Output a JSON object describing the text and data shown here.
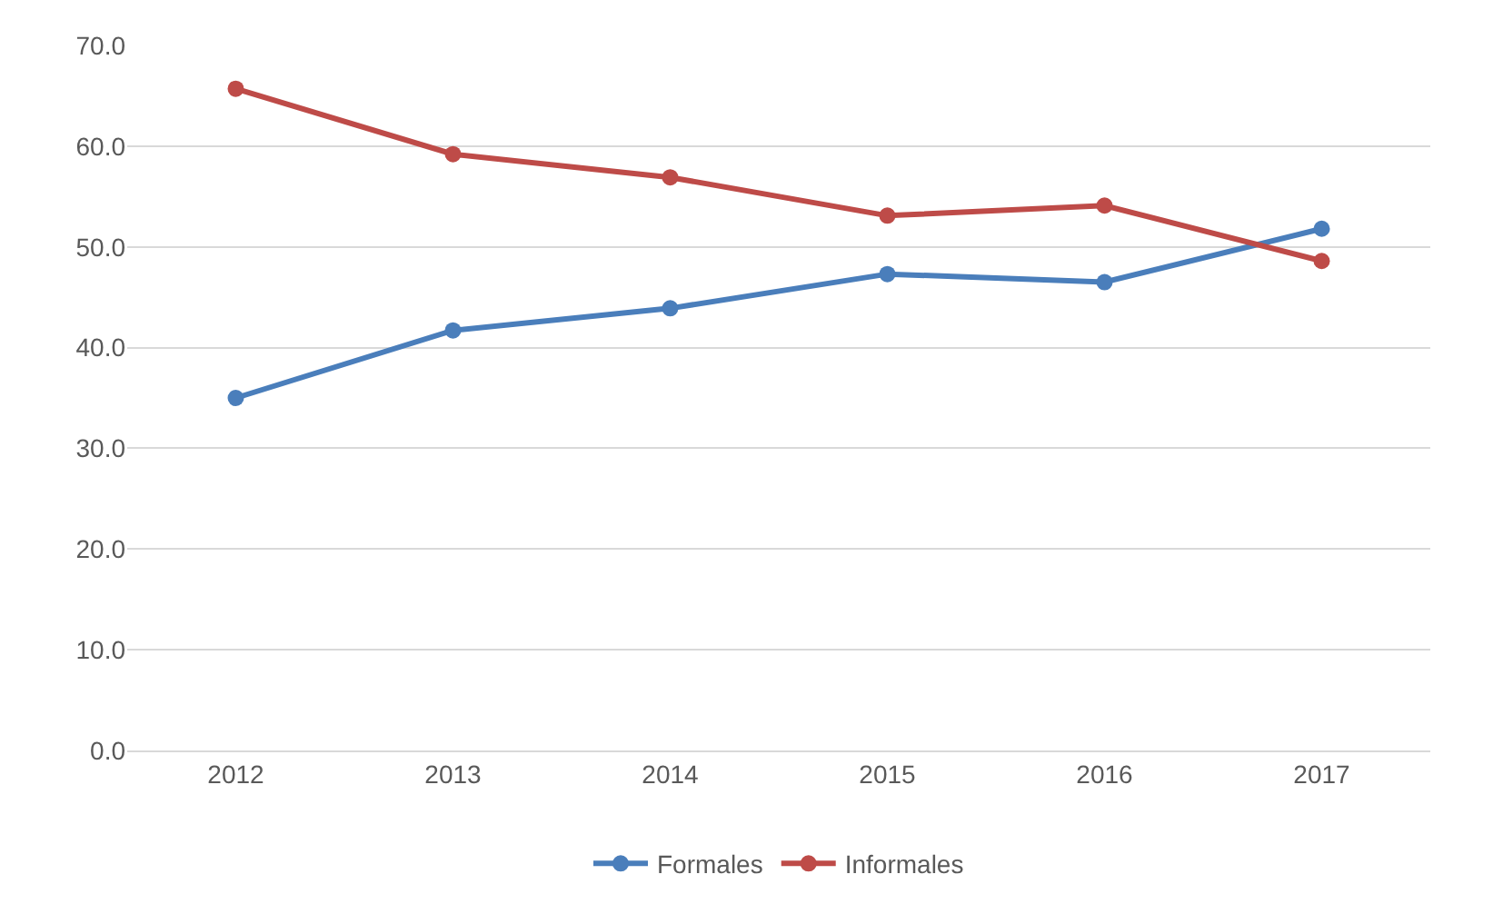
{
  "chart_data": {
    "type": "line",
    "categories": [
      "2012",
      "2013",
      "2014",
      "2015",
      "2016",
      "2017"
    ],
    "series": [
      {
        "name": "Formales",
        "color": "#4a7ebb",
        "values": [
          35.0,
          41.7,
          43.9,
          47.3,
          46.5,
          51.8
        ]
      },
      {
        "name": "Informales",
        "color": "#be4b48",
        "values": [
          65.7,
          59.2,
          56.9,
          53.1,
          54.1,
          48.6
        ]
      }
    ],
    "ylim": [
      0,
      70
    ],
    "yticks": [
      {
        "value": 0,
        "label": "0.0"
      },
      {
        "value": 10,
        "label": "10.0"
      },
      {
        "value": 20,
        "label": "20.0"
      },
      {
        "value": 30,
        "label": "30.0"
      },
      {
        "value": 40,
        "label": "40.0"
      },
      {
        "value": 50,
        "label": "50.0"
      },
      {
        "value": 60,
        "label": "60.0"
      },
      {
        "value": 70,
        "label": "70.0"
      }
    ],
    "grid": "y",
    "legend": "bottom",
    "marker": "circle",
    "line_style": "solid"
  }
}
